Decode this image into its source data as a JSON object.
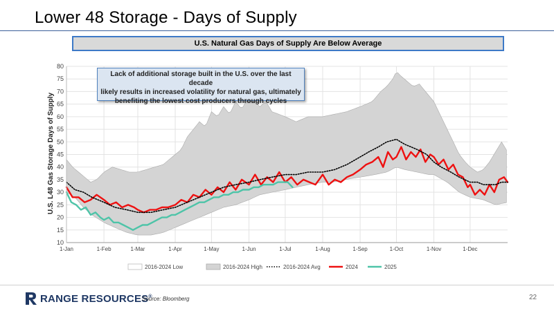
{
  "page": {
    "title": "Lower 48 Storage - Days of Supply",
    "banner": "U.S. Natural Gas Days of Supply Are Below Average",
    "callout": [
      "Lack of additional storage built in the U.S. over the last decade",
      "likely results in increased volatility for natural gas, ultimately",
      "benefiting the lowest cost producers through cycles"
    ],
    "logo_text": "RANGE RESOURCES",
    "logo_reg": "®",
    "source": "Source: Bloomberg",
    "page_number": "22"
  },
  "colors": {
    "band": "#d4d4d4",
    "band_edge": "#aaaaaa",
    "avg": "#000000",
    "y2024": "#ee1111",
    "y2025": "#4ec4a8",
    "logo": "#1f3864",
    "accent": "#3d79c7"
  },
  "chart_data": {
    "type": "line",
    "ylabel": "U.S. L48 Gas Storage Days of Supply",
    "xlabel": "",
    "ylim": [
      10,
      80
    ],
    "yticks": [
      10,
      15,
      20,
      25,
      30,
      35,
      40,
      45,
      50,
      55,
      60,
      65,
      70,
      75,
      80
    ],
    "x_domain_days": [
      0,
      365
    ],
    "x_ticks": [
      {
        "label": "1-Jan",
        "day": 0
      },
      {
        "label": "1-Feb",
        "day": 31
      },
      {
        "label": "1-Mar",
        "day": 59
      },
      {
        "label": "1-Apr",
        "day": 90
      },
      {
        "label": "1-May",
        "day": 120
      },
      {
        "label": "1-Jun",
        "day": 151
      },
      {
        "label": "1-Jul",
        "day": 181
      },
      {
        "label": "1-Aug",
        "day": 212
      },
      {
        "label": "1-Sep",
        "day": 243
      },
      {
        "label": "1-Oct",
        "day": 273
      },
      {
        "label": "1-Nov",
        "day": 304
      },
      {
        "label": "1-Dec",
        "day": 334
      }
    ],
    "grid": true,
    "legend_position": "bottom",
    "legend": [
      {
        "label": "2016-2024 Low",
        "style": "area-white"
      },
      {
        "label": "2016-2024 High",
        "style": "area-gray"
      },
      {
        "label": "2016-2024 Avg",
        "style": "dotted"
      },
      {
        "label": "2024",
        "style": "line-red"
      },
      {
        "label": "2025",
        "style": "line-teal"
      }
    ],
    "series": [
      {
        "name": "2016-2024 Low",
        "x": [
          0,
          7,
          14,
          21,
          31,
          40,
          50,
          59,
          70,
          80,
          90,
          100,
          110,
          120,
          130,
          140,
          151,
          160,
          170,
          181,
          190,
          200,
          212,
          220,
          230,
          243,
          255,
          265,
          273,
          280,
          290,
          300,
          304,
          315,
          325,
          334,
          345,
          355,
          365
        ],
        "values": [
          30,
          28,
          24,
          21,
          18,
          16,
          14,
          13,
          13,
          14,
          16,
          18,
          20,
          22,
          24,
          25,
          27,
          29,
          30,
          31,
          32,
          33,
          34,
          34,
          35,
          36,
          37,
          38,
          40,
          39,
          38,
          37,
          37,
          34,
          30,
          28,
          27,
          25,
          26
        ]
      },
      {
        "name": "2016-2024 High",
        "x": [
          0,
          5,
          10,
          15,
          20,
          25,
          31,
          38,
          45,
          52,
          59,
          66,
          73,
          80,
          90,
          95,
          100,
          110,
          115,
          120,
          125,
          130,
          135,
          140,
          145,
          151,
          160,
          165,
          170,
          181,
          190,
          200,
          212,
          222,
          232,
          243,
          253,
          260,
          265,
          270,
          273,
          277,
          282,
          287,
          292,
          297,
          304,
          310,
          315,
          320,
          325,
          330,
          334,
          340,
          345,
          350,
          355,
          360,
          365
        ],
        "values": [
          43,
          40,
          38,
          36,
          34,
          35,
          38,
          40,
          39,
          38,
          38,
          39,
          40,
          41,
          45,
          47,
          52,
          58,
          56,
          62,
          60,
          64,
          61,
          66,
          63,
          68,
          64,
          66,
          62,
          60,
          58,
          60,
          60,
          61,
          62,
          64,
          66,
          70,
          72,
          75,
          78,
          76,
          74,
          72,
          73,
          70,
          66,
          60,
          55,
          50,
          45,
          42,
          40,
          38,
          39,
          42,
          46,
          50,
          46
        ]
      },
      {
        "name": "2016-2024 Avg",
        "x": [
          0,
          7,
          14,
          21,
          31,
          40,
          50,
          59,
          70,
          80,
          90,
          100,
          110,
          120,
          130,
          140,
          151,
          160,
          170,
          181,
          190,
          200,
          212,
          222,
          232,
          243,
          250,
          258,
          265,
          273,
          280,
          290,
          298,
          304,
          310,
          318,
          325,
          334,
          340,
          345,
          350,
          355,
          360,
          365
        ],
        "values": [
          34,
          31,
          30,
          28,
          26,
          24,
          23,
          22,
          22,
          23,
          24,
          26,
          28,
          30,
          32,
          33,
          34,
          35,
          36,
          37,
          37,
          38,
          38,
          39,
          41,
          44,
          46,
          48,
          50,
          51,
          49,
          47,
          45,
          42,
          40,
          38,
          36,
          34,
          34,
          33,
          33,
          33,
          34,
          34
        ]
      },
      {
        "name": "2024",
        "x": [
          0,
          5,
          10,
          15,
          20,
          25,
          31,
          36,
          41,
          46,
          51,
          56,
          59,
          64,
          69,
          74,
          79,
          84,
          90,
          95,
          100,
          105,
          110,
          115,
          120,
          125,
          130,
          135,
          140,
          145,
          151,
          156,
          161,
          166,
          171,
          176,
          181,
          186,
          191,
          196,
          201,
          206,
          212,
          217,
          222,
          227,
          232,
          237,
          243,
          248,
          253,
          258,
          262,
          266,
          270,
          273,
          277,
          281,
          285,
          289,
          293,
          297,
          301,
          304,
          308,
          312,
          316,
          320,
          324,
          328,
          332,
          334,
          338,
          342,
          346,
          350,
          354,
          358,
          362,
          365
        ],
        "values": [
          32,
          28,
          28,
          26,
          27,
          29,
          27,
          25,
          26,
          24,
          25,
          24,
          23,
          22,
          23,
          23,
          24,
          24,
          25,
          27,
          26,
          29,
          28,
          31,
          29,
          32,
          30,
          34,
          31,
          35,
          33,
          37,
          33,
          36,
          34,
          38,
          34,
          36,
          33,
          35,
          34,
          33,
          37,
          33,
          35,
          34,
          36,
          37,
          39,
          41,
          42,
          44,
          40,
          46,
          43,
          44,
          48,
          43,
          46,
          44,
          47,
          42,
          45,
          44,
          41,
          43,
          39,
          41,
          37,
          36,
          32,
          33,
          29,
          31,
          29,
          33,
          30,
          35,
          36,
          34
        ]
      },
      {
        "name": "2025",
        "x": [
          0,
          4,
          8,
          12,
          16,
          20,
          24,
          28,
          31,
          35,
          39,
          43,
          47,
          51,
          55,
          59,
          63,
          67,
          71,
          75,
          79,
          83,
          87,
          90,
          94,
          98,
          102,
          106,
          110,
          114,
          118,
          122,
          126,
          130,
          134,
          138,
          142,
          146,
          151,
          155,
          159,
          163,
          167,
          171,
          175,
          179,
          183,
          187
        ],
        "values": [
          30,
          26,
          25,
          23,
          24,
          21,
          22,
          20,
          19,
          20,
          18,
          18,
          17,
          16,
          15,
          16,
          17,
          17,
          18,
          19,
          20,
          20,
          21,
          21,
          22,
          23,
          24,
          25,
          26,
          26,
          27,
          28,
          28,
          29,
          29,
          30,
          30,
          31,
          31,
          32,
          32,
          33,
          33,
          33,
          34,
          34,
          34,
          32
        ]
      }
    ]
  }
}
